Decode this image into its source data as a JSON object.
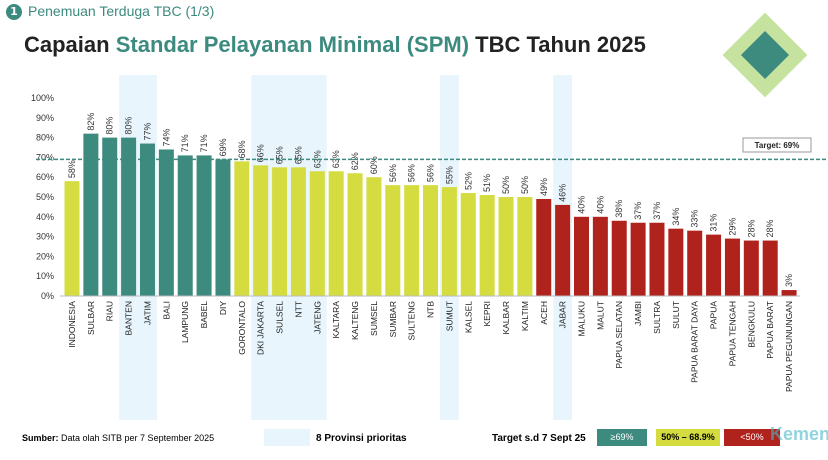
{
  "header": {
    "badge": "1",
    "subtitle": "Penemuan Terduga TBC (1/3)",
    "title_pre": "Capaian ",
    "title_hl": "Standar Pelayanan Minimal (SPM)",
    "title_post": " TBC Tahun 2025"
  },
  "chart_data": {
    "type": "bar",
    "ylim": [
      0,
      100
    ],
    "yticks": [
      "0%",
      "10%",
      "20%",
      "30%",
      "40%",
      "50%",
      "60%",
      "70%",
      "80%",
      "90%",
      "100%"
    ],
    "categories": [
      "INDONESIA",
      "SULBAR",
      "RIAU",
      "BANTEN",
      "JATIM",
      "BALI",
      "LAMPUNG",
      "BABEL",
      "DIY",
      "GORONTALO",
      "DKI JAKARTA",
      "SULSEL",
      "NTT",
      "JATENG",
      "KALTARA",
      "KALTENG",
      "SUMSEL",
      "SUMBAR",
      "SULTENG",
      "NTB",
      "SUMUT",
      "KALSEL",
      "KEPRI",
      "KALBAR",
      "KALTIM",
      "ACEH",
      "JABAR",
      "MALUKU",
      "MALUT",
      "PAPUA SELATAN",
      "JAMBI",
      "SULTRA",
      "SULUT",
      "PAPUA BARAT DAYA",
      "PAPUA",
      "PAPUA TENGAH",
      "BENGKULU",
      "PAPUA BARAT",
      "PAPUA PEGUNUNGAN"
    ],
    "values": [
      58,
      82,
      80,
      80,
      77,
      74,
      71,
      71,
      69,
      68,
      66,
      65,
      65,
      63,
      63,
      62,
      60,
      56,
      56,
      56,
      55,
      52,
      51,
      50,
      50,
      49,
      46,
      40,
      40,
      38,
      37,
      37,
      34,
      33,
      31,
      29,
      28,
      28,
      3
    ],
    "data_labels": [
      "58%",
      "82%",
      "80%",
      "80%",
      "77%",
      "74%",
      "71%",
      "71%",
      "69%",
      "68%",
      "66%",
      "65%",
      "65%",
      "63%",
      "63%",
      "62%",
      "60%",
      "56%",
      "56%",
      "56%",
      "55%",
      "52%",
      "51%",
      "50%",
      "50%",
      "49%",
      "46%",
      "40%",
      "40%",
      "38%",
      "37%",
      "37%",
      "34%",
      "33%",
      "31%",
      "29%",
      "28%",
      "28%",
      "3%"
    ],
    "priority": [
      "BANTEN",
      "JATIM",
      "DKI JAKARTA",
      "SULSEL",
      "NTT",
      "JATENG",
      "SUMUT",
      "JABAR"
    ],
    "target": 69,
    "target_label": "Target: 69%",
    "colors": {
      "high": "#3d8a7f",
      "mid": "#d4dc3f",
      "low": "#b0221c",
      "priority_bg": "#e8f5fc",
      "target_line": "#3d8a7f"
    }
  },
  "footer": {
    "source_bold": "Sumber:",
    "source": " Data olah SITB per 7 September 2025",
    "priority_label": "8 Provinsi prioritas",
    "target_label": "Target s.d 7 Sept 25",
    "leg_high": "≥69%",
    "leg_mid": "50% – 68.9%",
    "leg_low": "<50%",
    "logo": "Kemenkes"
  }
}
